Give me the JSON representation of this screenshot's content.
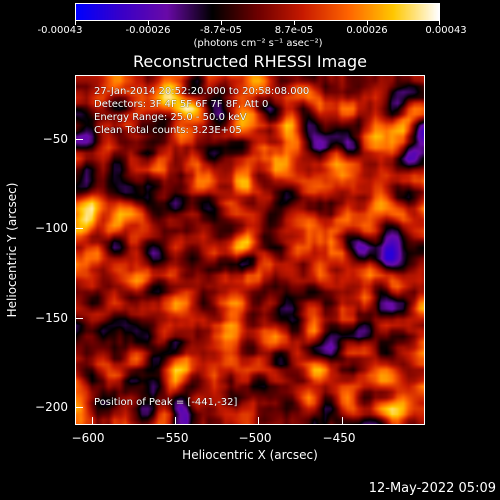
{
  "colorbar": {
    "tick_labels": [
      "-0.00043",
      "-0.00026",
      "-8.7e-05",
      "8.7e-05",
      "0.00026",
      "0.00043"
    ],
    "units_label": "(photons cm⁻² s⁻¹ asec⁻²)",
    "colors": [
      "#0000ff",
      "#3a00c8",
      "#6a0aa8",
      "#000000",
      "#6e0000",
      "#c81a00",
      "#ff6400",
      "#ffc800",
      "#ffffff"
    ]
  },
  "chart_data": {
    "type": "heatmap",
    "title": "Reconstructed RHESSI Image",
    "xlabel": "Heliocentric X (arcsec)",
    "ylabel": "Heliocentric Y (arcsec)",
    "xlim": [
      -611,
      -401
    ],
    "ylim": [
      -209,
      -22
    ],
    "x_ticks": [
      "−600",
      "−550",
      "−500",
      "−450"
    ],
    "y_ticks": [
      "−50",
      "−100",
      "−150",
      "−200"
    ],
    "value_range": [
      -0.00043,
      0.00043
    ],
    "peak_position": [
      -441,
      -32
    ],
    "annotations": {
      "time": "27-Jan-2014 20:52:20.000 to 20:58:08.000",
      "detectors": "Detectors: 3F 4F 5F 6F 7F 8F, Att 0",
      "energy": "Energy Range: 25.0 - 50.0 keV",
      "method": "Clean     Total counts: 3.23E+05",
      "peak": "Position of Peak = [-441,-32]"
    }
  },
  "footer": {
    "date": "12-May-2022 05:09"
  }
}
